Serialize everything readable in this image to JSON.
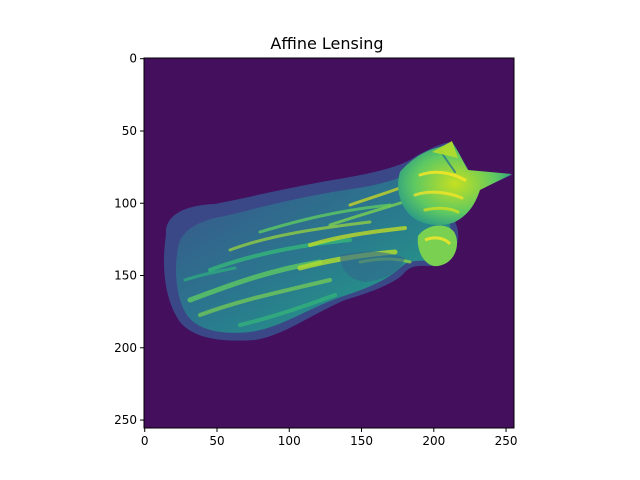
{
  "figure": {
    "title": "Affine Lensing"
  },
  "image": {
    "content": "lensed-cat",
    "colormap": "viridis",
    "background_color": "#440f5d",
    "x_range": [
      0,
      256
    ],
    "y_range": [
      0,
      256
    ],
    "origin": "upper"
  },
  "axes": {
    "x_ticks": [
      {
        "value": 0,
        "label": "0"
      },
      {
        "value": 50,
        "label": "50"
      },
      {
        "value": 100,
        "label": "100"
      },
      {
        "value": 150,
        "label": "150"
      },
      {
        "value": 200,
        "label": "200"
      },
      {
        "value": 250,
        "label": "250"
      }
    ],
    "y_ticks": [
      {
        "value": 0,
        "label": "0"
      },
      {
        "value": 50,
        "label": "50"
      },
      {
        "value": 100,
        "label": "100"
      },
      {
        "value": 150,
        "label": "150"
      },
      {
        "value": 200,
        "label": "200"
      },
      {
        "value": 250,
        "label": "250"
      }
    ]
  }
}
